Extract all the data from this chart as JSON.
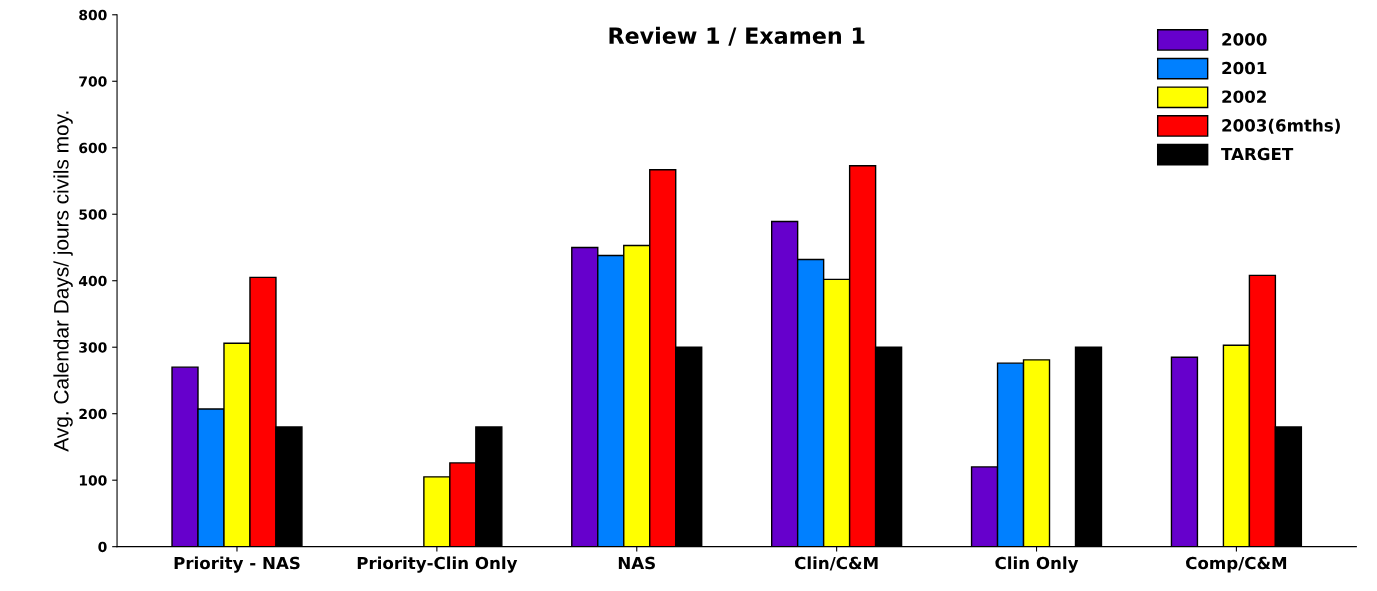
{
  "chart_data": {
    "type": "bar",
    "title": "Review 1 / Examen 1",
    "ylabel": "Avg. Calendar Days/ jours civils moy.",
    "categories": [
      "Priority - NAS",
      "Priority-Clin Only",
      "NAS",
      "Clin/C&M",
      "Clin Only",
      "Comp/C&M"
    ],
    "series": [
      {
        "name": "2000",
        "color": "#6600cc",
        "values": [
          270,
          null,
          450,
          489,
          120,
          285
        ]
      },
      {
        "name": "2001",
        "color": "#0080ff",
        "values": [
          207,
          null,
          438,
          432,
          276,
          null
        ]
      },
      {
        "name": "2002",
        "color": "#ffff00",
        "values": [
          306,
          105,
          453,
          402,
          281,
          303
        ]
      },
      {
        "name": "2003(6mths)",
        "color": "#ff0000",
        "values": [
          405,
          126,
          567,
          573,
          null,
          408
        ]
      },
      {
        "name": "TARGET",
        "color": "#000000",
        "values": [
          180,
          180,
          300,
          300,
          300,
          180
        ]
      }
    ],
    "ylim": [
      0,
      800
    ],
    "yticks": [
      0,
      100,
      200,
      300,
      400,
      500,
      600,
      700,
      800
    ],
    "grid": false,
    "legend": "top right"
  }
}
